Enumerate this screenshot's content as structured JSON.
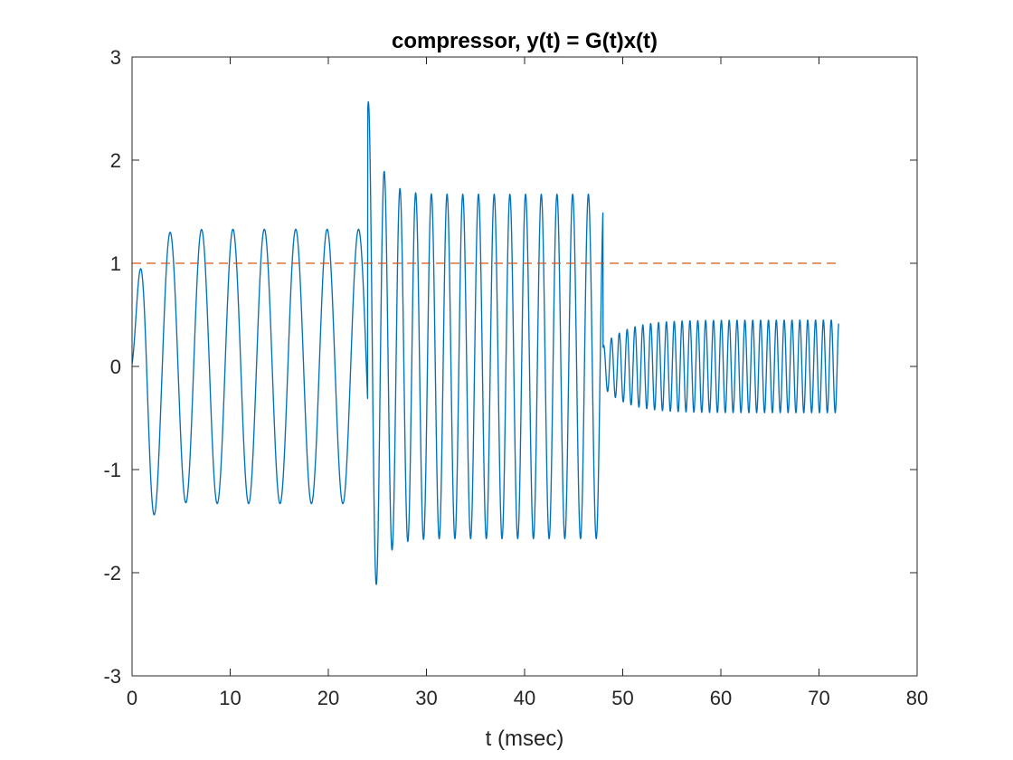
{
  "chart_data": {
    "type": "line",
    "title": "compressor, y(t) = G(t)x(t)",
    "xlabel": "t (msec)",
    "ylabel": "",
    "xlim": [
      0,
      80
    ],
    "ylim": [
      -3,
      3
    ],
    "xticks": [
      0,
      10,
      20,
      30,
      40,
      50,
      60,
      70,
      80
    ],
    "xtick_labels": [
      "0",
      "10",
      "20",
      "30",
      "40",
      "50",
      "60",
      "70",
      "80"
    ],
    "yticks": [
      -3,
      -2,
      -1,
      0,
      1,
      2,
      3
    ],
    "ytick_labels": [
      "-3",
      "-2",
      "-1",
      "0",
      "1",
      "2",
      "3"
    ],
    "grid": false,
    "box": true,
    "colors": {
      "signal": "#0072BD",
      "threshold": "#D95319",
      "axes": "#262626"
    },
    "series": [
      {
        "style": "solid",
        "color": "#0072BD",
        "segments": [
          {
            "t_start": 0,
            "t_end": 24,
            "frequency_per_msec": 0.3125,
            "amplitude": 1.33,
            "peak_extremes": [
              [
                0.5,
                0.43
              ],
              [
                1.7,
                -1.82
              ],
              [
                3.3,
                1.48
              ],
              [
                4.9,
                -1.38
              ]
            ]
          },
          {
            "t_start": 24,
            "t_end": 48,
            "frequency_per_msec": 0.625,
            "amplitude": 1.67,
            "peak_extremes": [
              [
                24.1,
                2.65
              ],
              [
                24.9,
                -2.34
              ],
              [
                25.7,
                2.01
              ],
              [
                26.5,
                -1.85
              ],
              [
                27.3,
                1.73
              ]
            ]
          },
          {
            "t_start": 48,
            "t_end": 72,
            "frequency_per_msec": 1.25,
            "amplitude": 0.45,
            "start_amplitude": 0.2
          }
        ]
      },
      {
        "style": "dashed",
        "color": "#D95319",
        "x": [
          0,
          72
        ],
        "y": [
          1,
          1
        ]
      }
    ]
  }
}
